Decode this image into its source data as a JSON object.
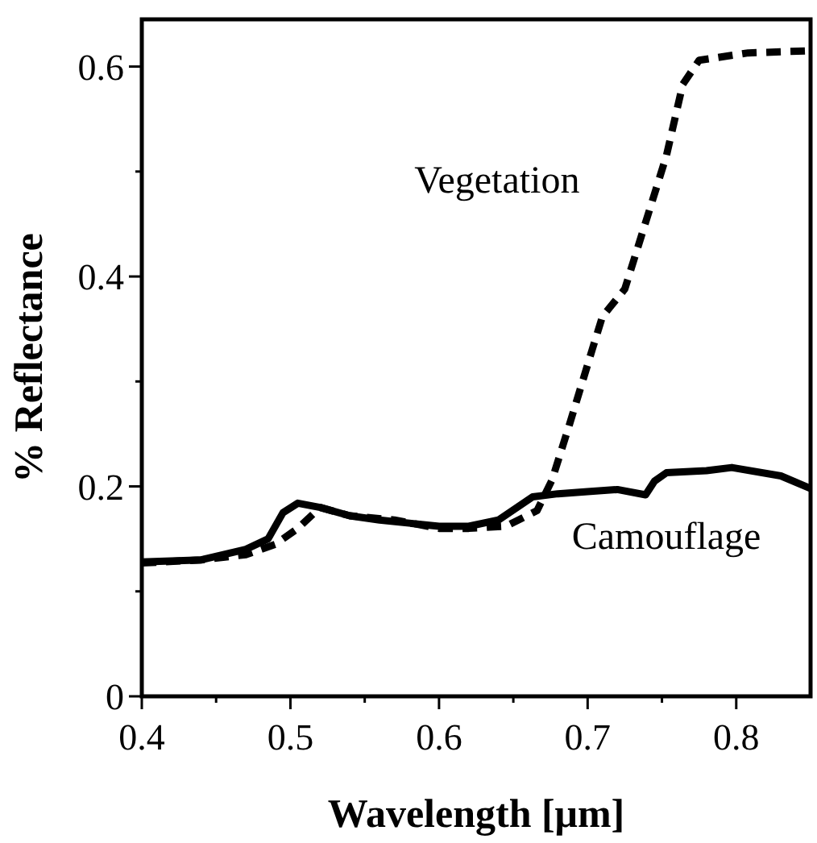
{
  "chart_data": {
    "type": "line",
    "xlabel": "Wavelength [μm]",
    "ylabel": "% Reflectance",
    "xlim": [
      0.4,
      0.85
    ],
    "ylim": [
      0,
      0.645
    ],
    "xticks": [
      0.4,
      {
        "value": 0.45,
        "label": null
      },
      0.5,
      {
        "value": 0.55,
        "label": null
      },
      0.6,
      {
        "value": 0.65,
        "label": null
      },
      0.7,
      {
        "value": 0.75,
        "label": null
      },
      0.8
    ],
    "yticks": [
      0,
      {
        "value": 0.1,
        "label": null
      },
      0.2,
      {
        "value": 0.3,
        "label": null
      },
      0.4,
      {
        "value": 0.5,
        "label": null
      },
      0.6
    ],
    "grid": false,
    "series": [
      {
        "name": "Vegetation",
        "color": "#000000",
        "line_style": "dashed",
        "x": [
          0.4,
          0.44,
          0.47,
          0.49,
          0.505,
          0.52,
          0.54,
          0.57,
          0.6,
          0.62,
          0.645,
          0.666,
          0.676,
          0.688,
          0.703,
          0.71,
          0.725,
          0.753,
          0.764,
          0.775,
          0.808,
          0.848
        ],
        "values": [
          0.127,
          0.13,
          0.135,
          0.145,
          0.16,
          0.18,
          0.172,
          0.168,
          0.16,
          0.16,
          0.162,
          0.177,
          0.206,
          0.26,
          0.33,
          0.362,
          0.388,
          0.515,
          0.583,
          0.606,
          0.613,
          0.615
        ]
      },
      {
        "name": "Camouflage",
        "color": "#000000",
        "line_style": "solid",
        "x": [
          0.4,
          0.44,
          0.47,
          0.485,
          0.495,
          0.505,
          0.52,
          0.54,
          0.56,
          0.58,
          0.6,
          0.62,
          0.64,
          0.663,
          0.68,
          0.7,
          0.72,
          0.739,
          0.745,
          0.753,
          0.78,
          0.797,
          0.83,
          0.85
        ],
        "values": [
          0.128,
          0.13,
          0.14,
          0.15,
          0.175,
          0.184,
          0.18,
          0.172,
          0.168,
          0.165,
          0.162,
          0.162,
          0.168,
          0.19,
          0.193,
          0.195,
          0.197,
          0.192,
          0.205,
          0.213,
          0.215,
          0.218,
          0.21,
          0.198
        ]
      }
    ]
  }
}
